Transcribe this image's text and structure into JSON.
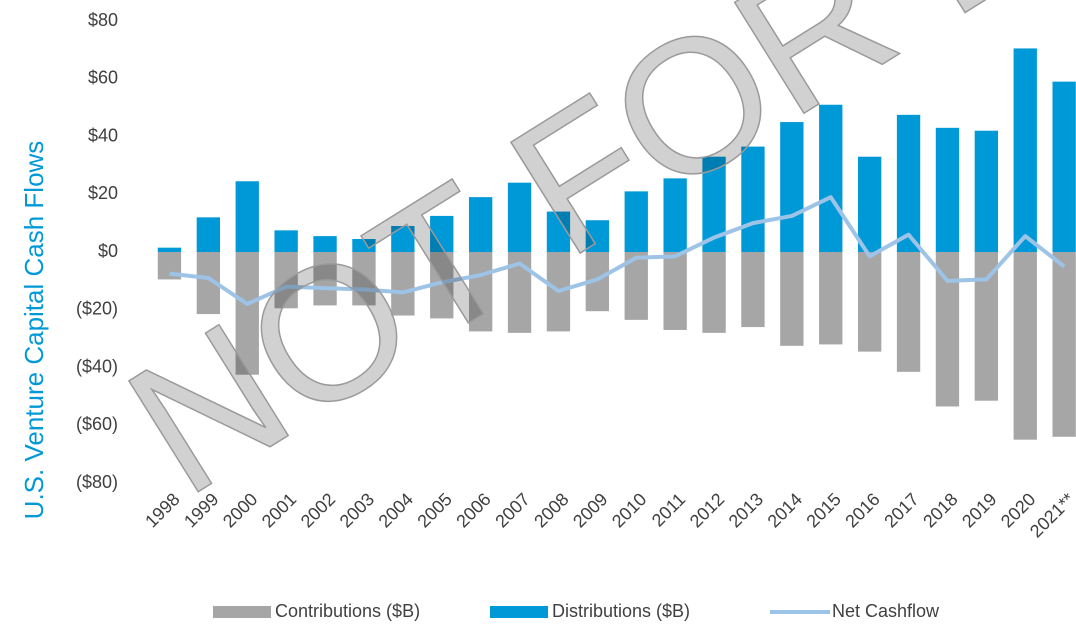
{
  "chart_data": {
    "type": "bar",
    "y_label": "U.S. Venture Capital Cash Flows",
    "watermark": "NOT FOR DIS",
    "categories": [
      "1998",
      "1999",
      "2000",
      "2001",
      "2002",
      "2003",
      "2004",
      "2005",
      "2006",
      "2007",
      "2008",
      "2009",
      "2010",
      "2011",
      "2012",
      "2013",
      "2014",
      "2015",
      "2016",
      "2017",
      "2018",
      "2019",
      "2020",
      "2021**"
    ],
    "series": [
      {
        "name": "Contributions ($B)",
        "type": "bar",
        "color": "#a6a6a6",
        "values": [
          -9.5,
          -21.5,
          -42.5,
          -19.5,
          -18.5,
          -18.5,
          -22,
          -23,
          -27.5,
          -28,
          -27.5,
          -20.5,
          -23.5,
          -27,
          -28,
          -26,
          -32.5,
          -32,
          -34.5,
          -41.5,
          -53.5,
          -51.5,
          -65,
          -64
        ]
      },
      {
        "name": "Distributions ($B)",
        "type": "bar",
        "color": "#0099d8",
        "values": [
          1.5,
          12,
          24.5,
          7.5,
          5.5,
          4.5,
          9,
          12.5,
          19,
          24,
          14,
          11,
          21,
          25.5,
          33,
          36.5,
          45,
          51,
          33,
          47.5,
          43,
          42,
          70.5,
          59
        ]
      },
      {
        "name": "Net Cashflow",
        "type": "line",
        "color": "#9dc3e6",
        "values": [
          -7.5,
          -9,
          -18,
          -12,
          -12.5,
          -13,
          -14,
          -10.5,
          -8,
          -4,
          -13.5,
          -9.5,
          -2,
          -1.5,
          5,
          10,
          12.5,
          19,
          -1.5,
          6,
          -10,
          -9.5,
          5.5,
          -5
        ]
      }
    ],
    "ylim": [
      -80,
      80
    ],
    "yticks": [
      {
        "value": 80,
        "label": "$80"
      },
      {
        "value": 60,
        "label": "$60"
      },
      {
        "value": 40,
        "label": "$40"
      },
      {
        "value": 20,
        "label": "$20"
      },
      {
        "value": 0,
        "label": "$0"
      },
      {
        "value": -20,
        "label": "($20)"
      },
      {
        "value": -40,
        "label": "($40)"
      },
      {
        "value": -60,
        "label": "($60)"
      },
      {
        "value": -80,
        "label": "($80)"
      }
    ],
    "grid": false,
    "legend": "bottom"
  }
}
